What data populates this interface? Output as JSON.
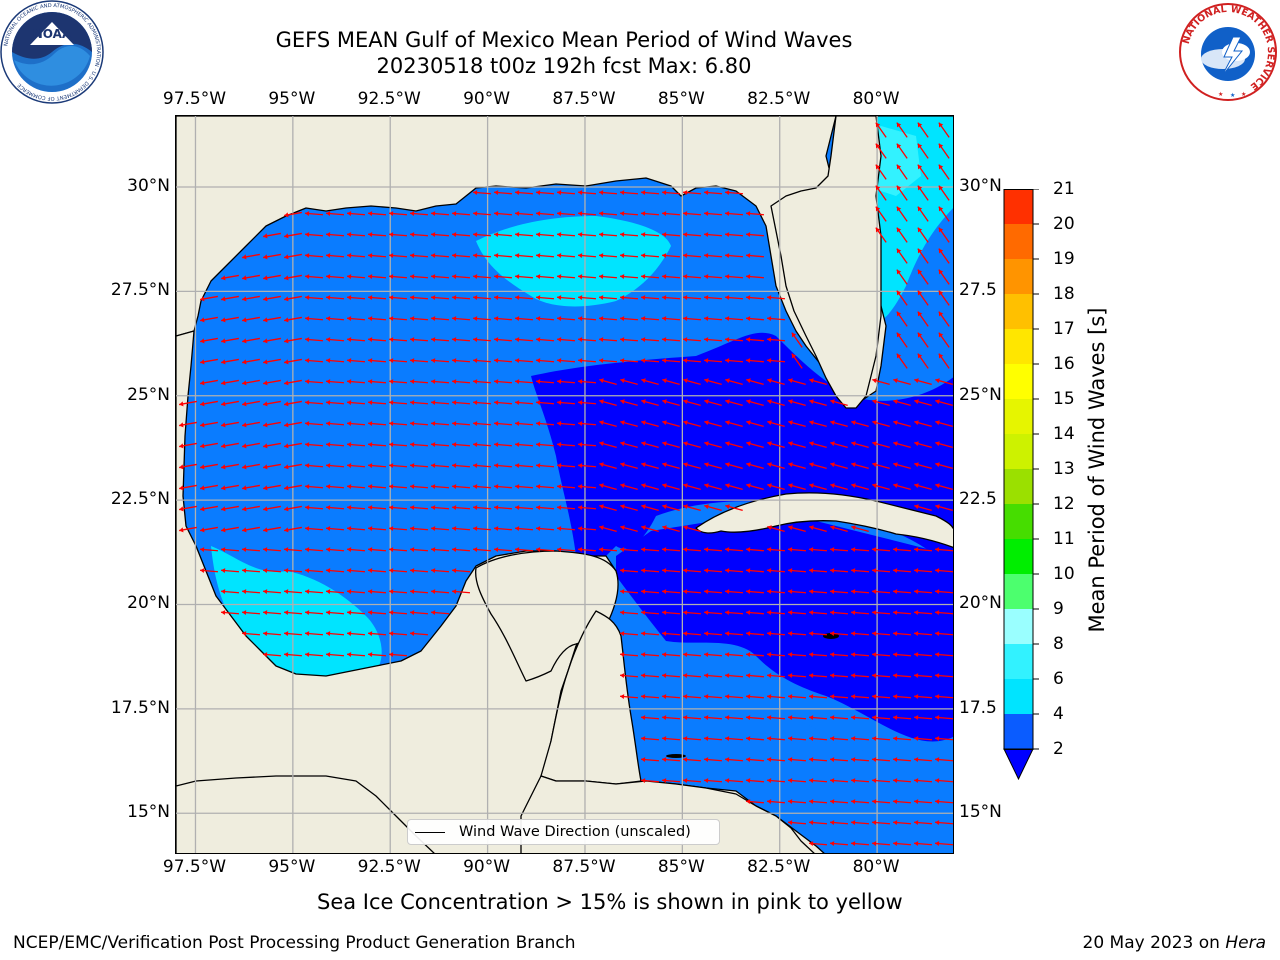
{
  "title": {
    "line1": "GEFS MEAN Gulf of Mexico Mean Period of Wind Waves",
    "line2": "20230518 t00z 192h fcst   Max: 6.80"
  },
  "map": {
    "region": "Gulf of Mexico",
    "lon_range": [
      -98,
      -78
    ],
    "lat_range": [
      14,
      31.7
    ],
    "lon_ticks": [
      "97.5°W",
      "95°W",
      "92.5°W",
      "90°W",
      "87.5°W",
      "85°W",
      "82.5°W",
      "80°W"
    ],
    "lat_ticks_left": [
      "30°N",
      "27.5°N",
      "25°N",
      "22.5°N",
      "20°N",
      "17.5°N",
      "15°N"
    ],
    "lat_ticks_right": [
      "30°N",
      "27.5",
      "25°N",
      "22.5",
      "20°N",
      "17.5",
      "15°N"
    ],
    "grid": true,
    "land_color": "#efedde",
    "arrow_color": "#ff0000",
    "legend_label": "Wind Wave Direction (unscaled)",
    "legend_placement": "bottom-center"
  },
  "colorbar": {
    "label": "Mean Period of Wind Waves [s]",
    "ticks": [
      "2",
      "4",
      "6",
      "8",
      "9",
      "10",
      "11",
      "12",
      "13",
      "14",
      "15",
      "16",
      "17",
      "18",
      "19",
      "20",
      "21"
    ],
    "colors": [
      "#0a5cff",
      "#00e4ff",
      "#32f2ff",
      "#9affff",
      "#4cff6e",
      "#00ee00",
      "#46dd00",
      "#9be000",
      "#cdf200",
      "#e6f500",
      "#ffff00",
      "#ffe600",
      "#ffc000",
      "#ff9400",
      "#ff6a00",
      "#ff3000"
    ],
    "under_color": "#0000ff",
    "over_color": "#ff0000"
  },
  "subtitle": "Sea Ice Concentration > 15% is shown in pink to yellow",
  "footer": {
    "left": "NCEP/EMC/Verification Post Processing Product Generation Branch",
    "right_date": "20 May 2023 on ",
    "right_host": "Hera"
  },
  "logos": {
    "noaa_text": "NOAA",
    "noaa_ring_text": "NATIONAL OCEANIC AND ATMOSPHERIC ADMINISTRATION · U.S. DEPARTMENT OF COMMERCE",
    "nws_ring_text": "NATIONAL WEATHER SERVICE"
  }
}
